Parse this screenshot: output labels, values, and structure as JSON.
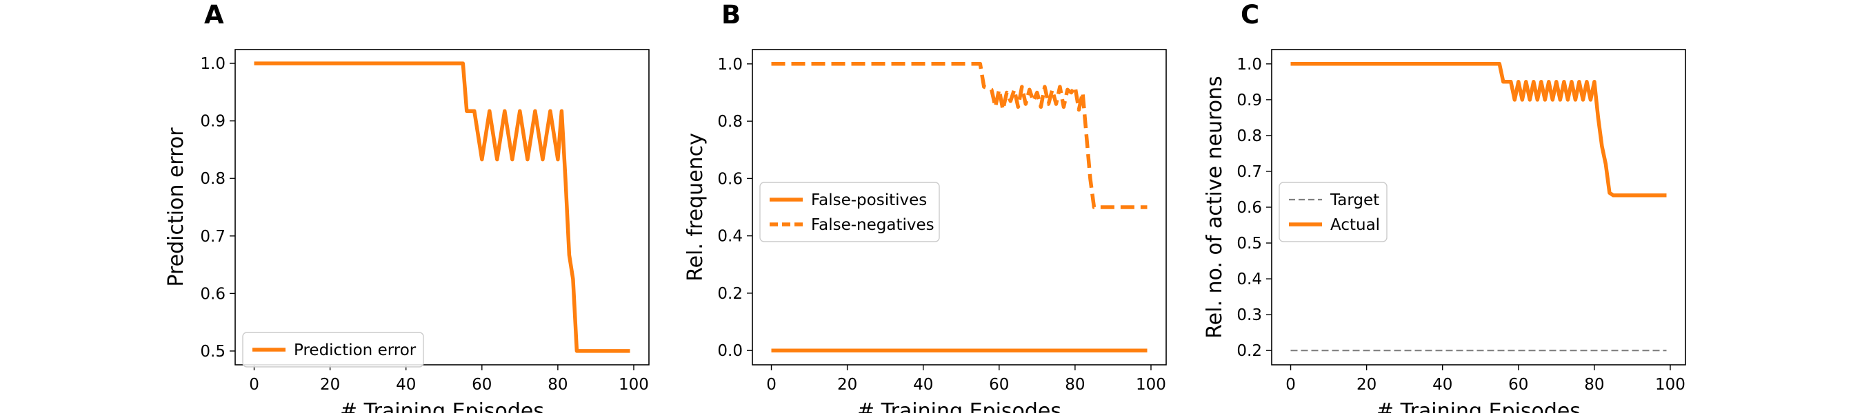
{
  "chart_data": [
    {
      "type": "line",
      "panel_label": "A",
      "xlabel": "# Training Episodes",
      "ylabel": "Prediction error",
      "xlim": [
        -5,
        104
      ],
      "ylim": [
        0.476,
        1.024
      ],
      "xticks": [
        0,
        20,
        40,
        60,
        80,
        100
      ],
      "yticks": [
        0.5,
        0.6,
        0.7,
        0.8,
        0.9,
        1.0
      ],
      "ytick_labels": [
        "0.5",
        "0.6",
        "0.7",
        "0.8",
        "0.9",
        "1.0"
      ],
      "grid": false,
      "legend_position": "lower-left",
      "series": [
        {
          "name": "Prediction error",
          "color": "#ff7f0e",
          "style": "solid",
          "x": [
            0,
            55,
            56,
            58,
            60,
            62,
            64,
            66,
            68,
            70,
            72,
            74,
            76,
            78,
            80,
            81,
            82,
            83,
            84,
            85,
            99
          ],
          "y": [
            1.0,
            1.0,
            0.917,
            0.917,
            0.833,
            0.917,
            0.833,
            0.917,
            0.833,
            0.917,
            0.833,
            0.917,
            0.833,
            0.917,
            0.833,
            0.917,
            0.8,
            0.667,
            0.625,
            0.5,
            0.5
          ]
        }
      ]
    },
    {
      "type": "line",
      "panel_label": "B",
      "xlabel": "# Training Episodes",
      "ylabel": "Rel. frequency",
      "xlim": [
        -5,
        104
      ],
      "ylim": [
        -0.05,
        1.05
      ],
      "xticks": [
        0,
        20,
        40,
        60,
        80,
        100
      ],
      "yticks": [
        0.0,
        0.2,
        0.4,
        0.6,
        0.8,
        1.0
      ],
      "ytick_labels": [
        "0.0",
        "0.2",
        "0.4",
        "0.6",
        "0.8",
        "1.0"
      ],
      "grid": false,
      "legend_position": "center-left",
      "series": [
        {
          "name": "False-positives",
          "color": "#ff7f0e",
          "style": "solid",
          "x": [
            0,
            99
          ],
          "y": [
            0.0,
            0.0
          ]
        },
        {
          "name": "False-negatives",
          "color": "#ff7f0e",
          "style": "dashed",
          "x": [
            0,
            55,
            56,
            58,
            59,
            60,
            61,
            62,
            63,
            64,
            65,
            66,
            67,
            68,
            69,
            70,
            71,
            72,
            73,
            74,
            75,
            76,
            77,
            78,
            79,
            80,
            81,
            82,
            83,
            84,
            85,
            99
          ],
          "y": [
            1.0,
            1.0,
            0.92,
            0.91,
            0.85,
            0.91,
            0.84,
            0.9,
            0.87,
            0.91,
            0.85,
            0.92,
            0.86,
            0.91,
            0.87,
            0.9,
            0.85,
            0.92,
            0.86,
            0.91,
            0.86,
            0.92,
            0.85,
            0.91,
            0.9,
            0.92,
            0.84,
            0.9,
            0.75,
            0.6,
            0.5,
            0.5
          ]
        }
      ]
    },
    {
      "type": "line",
      "panel_label": "C",
      "xlabel": "# Training Episodes",
      "ylabel": "Rel. no. of active neurons",
      "xlim": [
        -5,
        104
      ],
      "ylim": [
        0.16,
        1.04
      ],
      "xticks": [
        0,
        20,
        40,
        60,
        80,
        100
      ],
      "yticks": [
        0.2,
        0.3,
        0.4,
        0.5,
        0.6,
        0.7,
        0.8,
        0.9,
        1.0
      ],
      "ytick_labels": [
        "0.2",
        "0.3",
        "0.4",
        "0.5",
        "0.6",
        "0.7",
        "0.8",
        "0.9",
        "1.0"
      ],
      "grid": false,
      "legend_position": "center-left",
      "series": [
        {
          "name": "Target",
          "color": "#7f7f7f",
          "style": "dashed-thin",
          "x": [
            0,
            99
          ],
          "y": [
            0.2,
            0.2
          ]
        },
        {
          "name": "Actual",
          "color": "#ff7f0e",
          "style": "solid",
          "x": [
            0,
            55,
            56,
            58,
            59,
            60,
            61,
            62,
            63,
            64,
            65,
            66,
            67,
            68,
            69,
            70,
            71,
            72,
            73,
            74,
            75,
            76,
            77,
            78,
            79,
            80,
            81,
            82,
            83,
            84,
            85,
            86,
            99
          ],
          "y": [
            1.0,
            1.0,
            0.95,
            0.95,
            0.9,
            0.95,
            0.9,
            0.95,
            0.9,
            0.95,
            0.9,
            0.95,
            0.9,
            0.95,
            0.9,
            0.95,
            0.9,
            0.95,
            0.9,
            0.95,
            0.9,
            0.95,
            0.9,
            0.95,
            0.9,
            0.95,
            0.85,
            0.77,
            0.72,
            0.64,
            0.633,
            0.633,
            0.633
          ]
        }
      ]
    }
  ]
}
